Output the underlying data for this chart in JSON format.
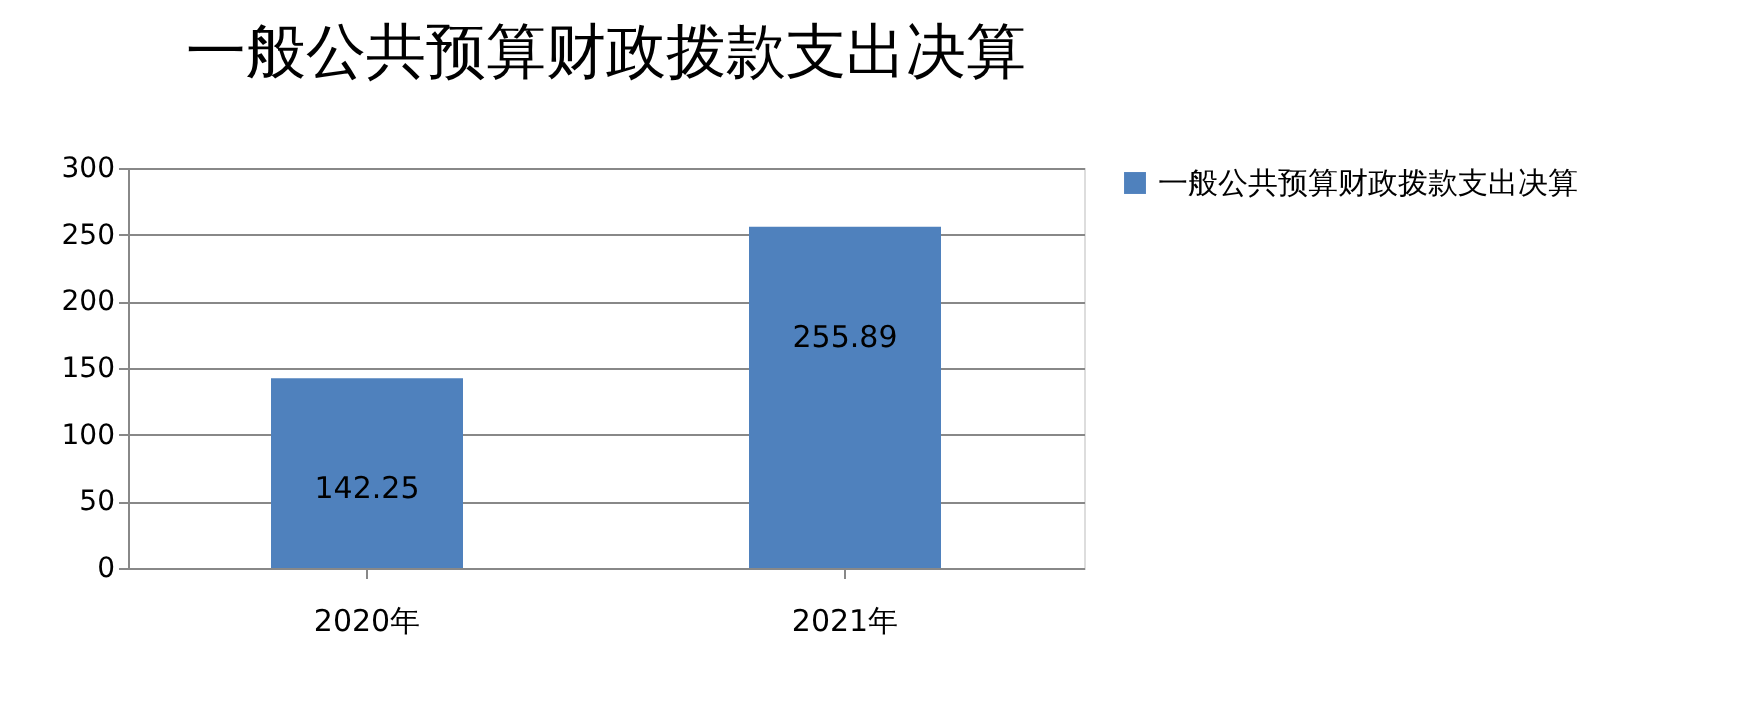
{
  "chart_data": {
    "type": "bar",
    "title": "一般公共预算财政拨款支出决算",
    "categories": [
      "2020年",
      "2021年"
    ],
    "series": [
      {
        "name": "一般公共预算财政拨款支出决算",
        "color": "#4f81bd",
        "values": [
          142.25,
          255.89
        ]
      }
    ],
    "ylim": [
      0,
      300
    ],
    "yticks": [
      0,
      50,
      100,
      150,
      200,
      250,
      300
    ],
    "grid": "y",
    "legend": "right",
    "data_labels": true
  }
}
